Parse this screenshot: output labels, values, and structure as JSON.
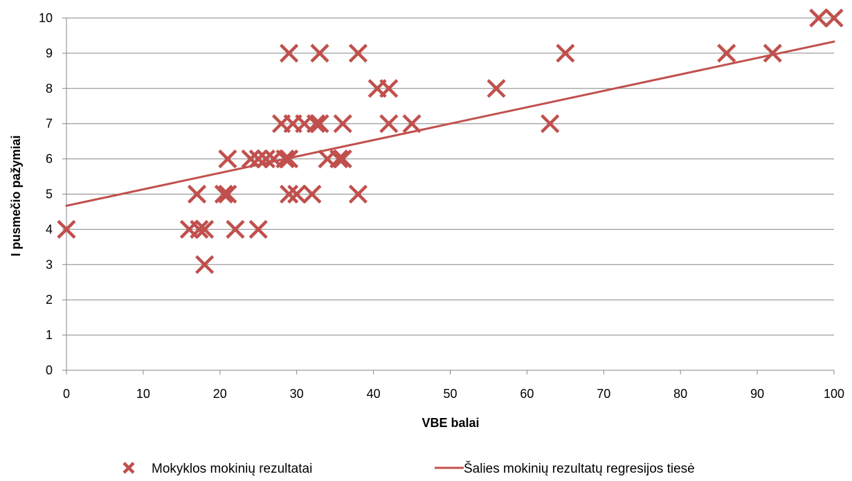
{
  "chart_data": {
    "type": "scatter",
    "title": "",
    "xlabel": "VBE balai",
    "ylabel": "I pusmečio pažymiai",
    "xlim": [
      0,
      100
    ],
    "ylim": [
      0,
      10
    ],
    "x_ticks": [
      "0",
      "10",
      "20",
      "30",
      "40",
      "50",
      "60",
      "70",
      "80",
      "90",
      "100"
    ],
    "y_ticks": [
      "0",
      "1",
      "2",
      "3",
      "4",
      "5",
      "6",
      "7",
      "8",
      "9",
      "10"
    ],
    "grid": "horizontal",
    "legend_position": "bottom",
    "colors": {
      "series": "#c0504d",
      "grid": "#868686",
      "axis": "#868686"
    },
    "series": [
      {
        "name": "Mokyklos mokinių rezultatai",
        "kind": "points",
        "marker": "x",
        "points": [
          [
            0,
            4
          ],
          [
            16,
            4
          ],
          [
            17.3,
            4
          ],
          [
            18,
            4
          ],
          [
            22,
            4
          ],
          [
            25,
            4
          ],
          [
            18,
            3
          ],
          [
            17,
            5
          ],
          [
            20.5,
            5
          ],
          [
            21,
            5
          ],
          [
            29,
            5
          ],
          [
            30,
            5
          ],
          [
            32,
            5
          ],
          [
            38,
            5
          ],
          [
            21,
            6
          ],
          [
            24,
            6
          ],
          [
            25,
            6
          ],
          [
            26,
            6
          ],
          [
            27,
            6
          ],
          [
            28.5,
            6
          ],
          [
            29,
            6
          ],
          [
            34,
            6
          ],
          [
            35.5,
            6
          ],
          [
            36,
            6
          ],
          [
            28,
            7
          ],
          [
            29.5,
            7
          ],
          [
            31,
            7
          ],
          [
            32.5,
            7
          ],
          [
            33,
            7
          ],
          [
            36,
            7
          ],
          [
            42,
            7
          ],
          [
            45,
            7
          ],
          [
            63,
            7
          ],
          [
            40.5,
            8
          ],
          [
            42,
            8
          ],
          [
            56,
            8
          ],
          [
            29,
            9
          ],
          [
            33,
            9
          ],
          [
            38,
            9
          ],
          [
            65,
            9
          ],
          [
            86,
            9
          ],
          [
            92,
            9
          ],
          [
            98,
            10
          ],
          [
            100,
            10
          ]
        ]
      },
      {
        "name": "Šalies mokinių rezultatų regresijos tiesė",
        "kind": "line",
        "points": [
          [
            0,
            4.67
          ],
          [
            100,
            9.33
          ]
        ]
      }
    ]
  }
}
